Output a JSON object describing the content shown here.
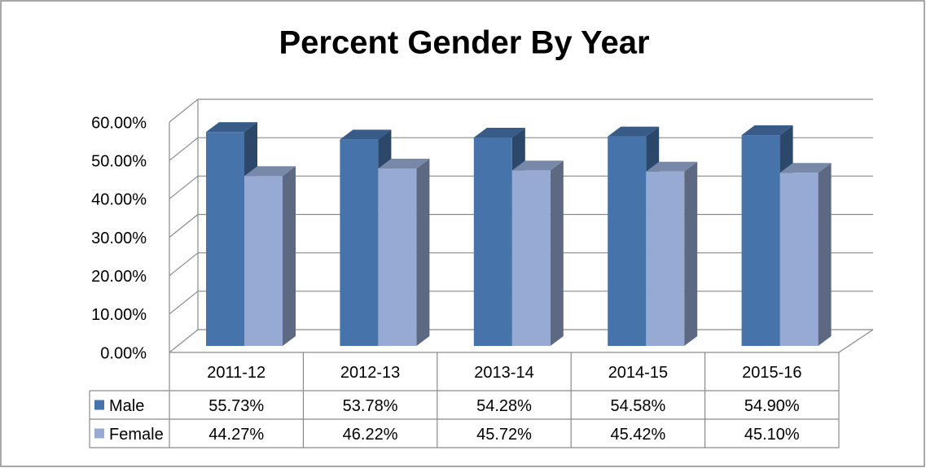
{
  "chart_data": {
    "type": "bar3d",
    "title": "Percent Gender By Year",
    "categories": [
      "2011-12",
      "2012-13",
      "2013-14",
      "2014-15",
      "2015-16"
    ],
    "series": [
      {
        "name": "Male",
        "color": "#4673a9",
        "values": [
          55.73,
          53.78,
          54.28,
          54.58,
          54.9
        ],
        "value_labels": [
          "55.73%",
          "53.78%",
          "54.28%",
          "54.58%",
          "54.90%"
        ]
      },
      {
        "name": "Female",
        "color": "#96aad3",
        "values": [
          44.27,
          46.22,
          45.72,
          45.42,
          45.1
        ],
        "value_labels": [
          "44.27%",
          "46.22%",
          "45.72%",
          "45.42%",
          "45.10%"
        ]
      }
    ],
    "ylim": [
      0,
      60
    ],
    "yticks": [
      {
        "value": 0,
        "label": "0.00%"
      },
      {
        "value": 10,
        "label": "10.00%"
      },
      {
        "value": 20,
        "label": "20.00%"
      },
      {
        "value": 30,
        "label": "30.00%"
      },
      {
        "value": 40,
        "label": "40.00%"
      },
      {
        "value": 50,
        "label": "50.00%"
      },
      {
        "value": 60,
        "label": "60.00%"
      }
    ],
    "grid": true
  }
}
